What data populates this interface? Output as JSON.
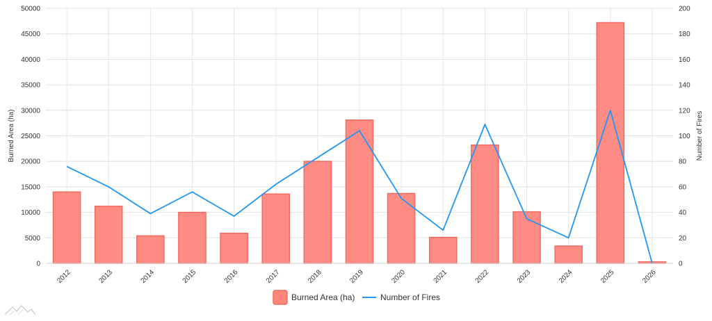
{
  "chart_data": {
    "type": "bar",
    "categories": [
      "2012",
      "2013",
      "2014",
      "2015",
      "2016",
      "2017",
      "2018",
      "2019",
      "2020",
      "2021",
      "2022",
      "2023",
      "2024",
      "2025",
      "2026"
    ],
    "series": [
      {
        "name": "Burned Area (ha)",
        "type": "bar",
        "axis": "left",
        "color": "#ff867d",
        "values": [
          14000,
          11200,
          5400,
          10000,
          5900,
          13600,
          20000,
          28100,
          13700,
          5100,
          23200,
          10100,
          3400,
          47200,
          300
        ]
      },
      {
        "name": "Number of Fires",
        "type": "line",
        "axis": "right",
        "color": "#2196f3",
        "values": [
          76,
          60,
          39,
          56,
          37,
          62,
          83,
          104,
          51,
          26,
          109,
          35,
          20,
          120,
          0
        ]
      }
    ],
    "ylabel": "Burned Area (ha)",
    "y2label": "Number of Fires",
    "ylim": [
      0,
      50000
    ],
    "y2lim": [
      0,
      200
    ],
    "yticks": [
      0,
      5000,
      10000,
      15000,
      20000,
      25000,
      30000,
      35000,
      40000,
      45000,
      50000
    ],
    "y2ticks": [
      0,
      20,
      40,
      60,
      80,
      100,
      120,
      140,
      160,
      180,
      200
    ],
    "grid": true,
    "legend": "bottom-center"
  },
  "watermark": {
    "icon": "mountain-logo-icon"
  }
}
